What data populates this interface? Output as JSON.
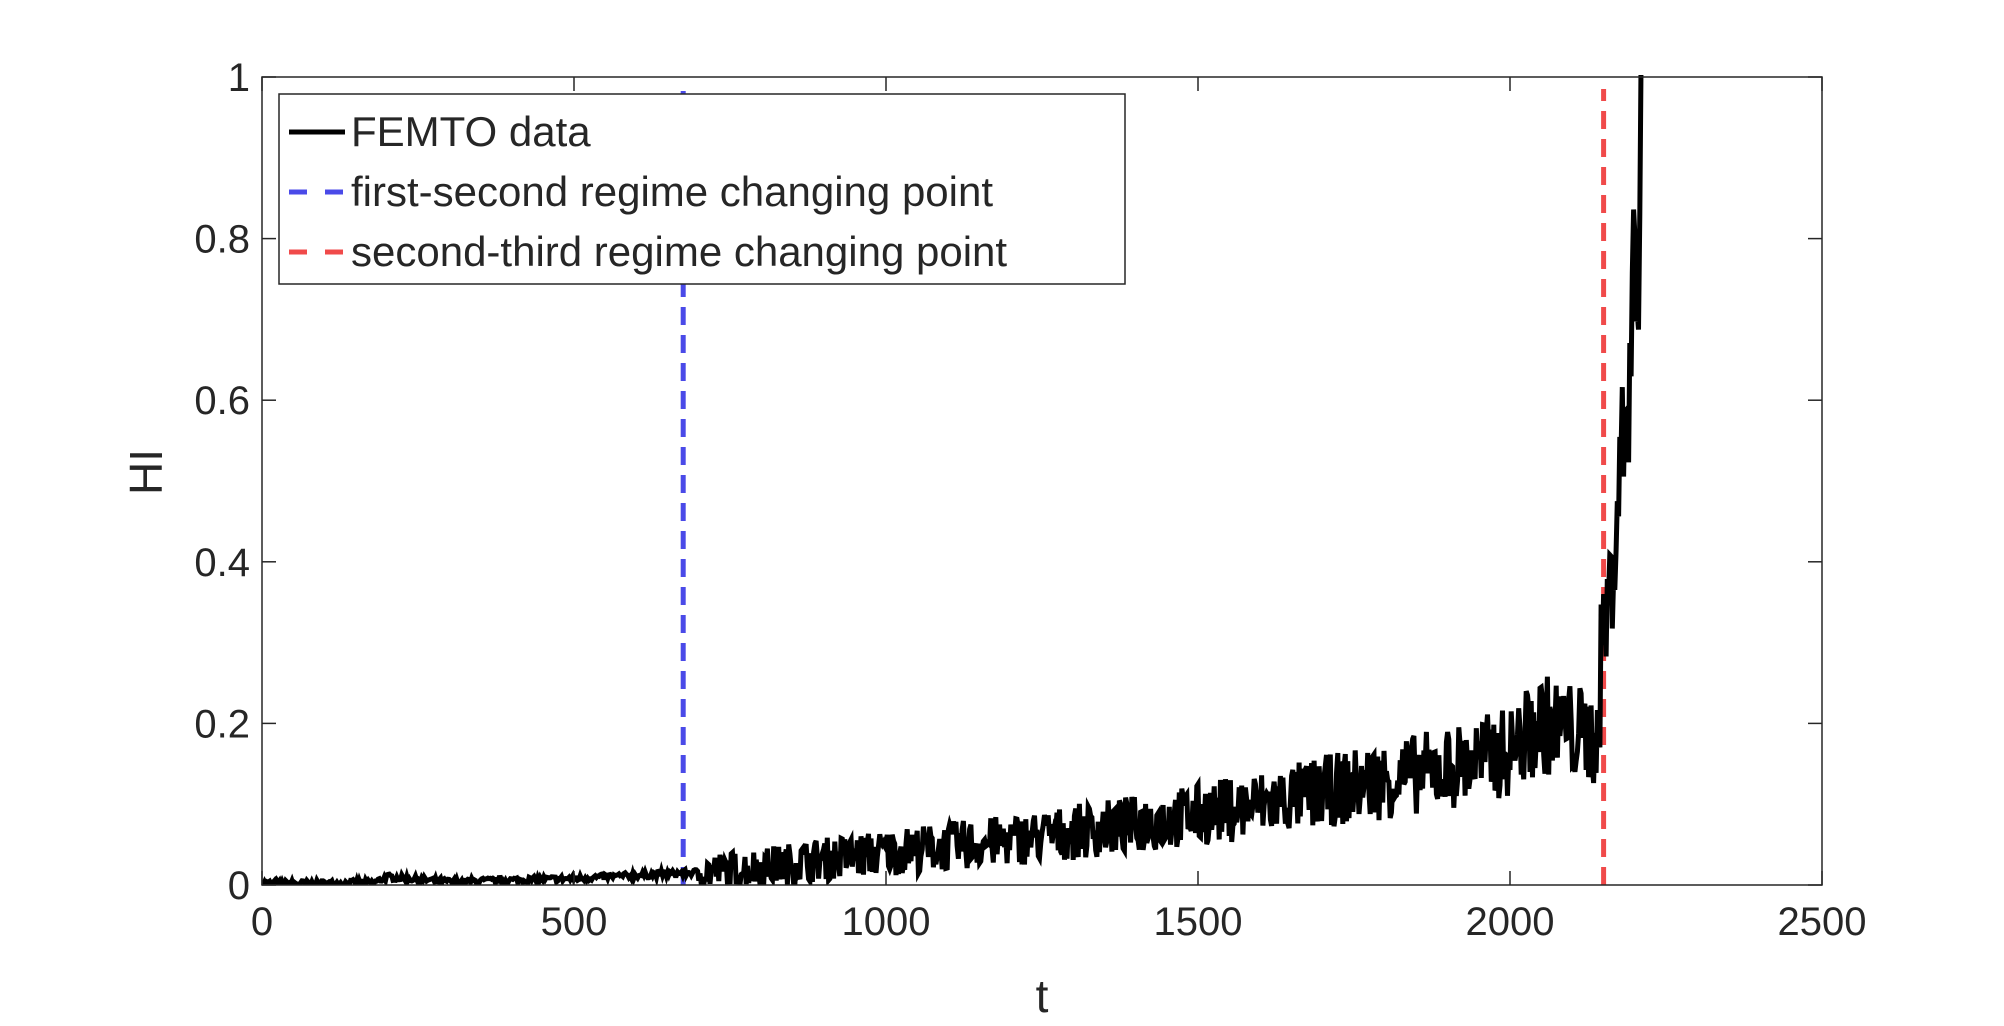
{
  "chart_data": {
    "type": "line",
    "title": "",
    "xlabel": "t",
    "ylabel": "HI",
    "xlim": [
      0,
      2500
    ],
    "ylim": [
      0,
      1
    ],
    "x_ticks": [
      0,
      500,
      1000,
      1500,
      2000,
      2500
    ],
    "x_tick_labels": [
      "0",
      "500",
      "1000",
      "1500",
      "2000",
      "2500"
    ],
    "y_ticks": [
      0,
      0.2,
      0.4,
      0.6,
      0.8,
      1
    ],
    "y_tick_labels": [
      "0",
      "0.2",
      "0.4",
      "0.6",
      "0.8",
      "1"
    ],
    "grid": false,
    "box": true,
    "legend_position": "top-left",
    "series": [
      {
        "name": "FEMTO data",
        "style": "solid",
        "color": "#000000",
        "x": [
          0,
          100,
          180,
          200,
          300,
          400,
          500,
          600,
          680,
          750,
          800,
          900,
          1000,
          1100,
          1200,
          1300,
          1400,
          1500,
          1600,
          1700,
          1800,
          1900,
          2000,
          2050,
          2100,
          2140,
          2150,
          2160,
          2170,
          2180,
          2190,
          2200,
          2205,
          2210
        ],
        "y": [
          0.002,
          0.002,
          0.003,
          0.01,
          0.004,
          0.006,
          0.008,
          0.012,
          0.015,
          0.018,
          0.022,
          0.032,
          0.04,
          0.048,
          0.055,
          0.065,
          0.075,
          0.087,
          0.1,
          0.115,
          0.13,
          0.145,
          0.165,
          0.2,
          0.19,
          0.18,
          0.33,
          0.35,
          0.45,
          0.55,
          0.6,
          0.8,
          0.7,
          1.0
        ]
      },
      {
        "name": "first-second regime changing point",
        "style": "dashed",
        "color": "#4a4ae8",
        "x_value": 675
      },
      {
        "name": "second-third regime changing point",
        "style": "dashed",
        "color": "#f04a4a",
        "x_value": 2150
      }
    ]
  }
}
